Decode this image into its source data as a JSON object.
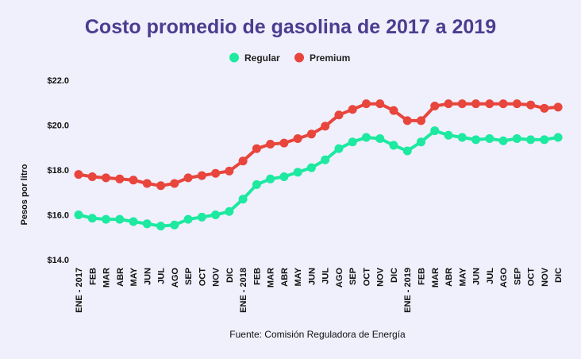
{
  "chart_data": {
    "type": "line",
    "title": "Costo promedio de gasolina de 2017 a 2019",
    "ylabel": "Pesos por litro",
    "xlabel": "",
    "source": "Fuente: Comisión Reguladora de Energía",
    "ylim": [
      14.0,
      22.0
    ],
    "yticks": [
      "$14.0",
      "$16.0",
      "$18.0",
      "$20.0",
      "$22.0"
    ],
    "ytick_values": [
      14,
      16,
      18,
      20,
      22
    ],
    "legend_position": "top-center",
    "grid": false,
    "categories": [
      "ENE - 2017",
      "FEB",
      "MAR",
      "ABR",
      "MAY",
      "JUN",
      "JUL",
      "AGO",
      "SEP",
      "OCT",
      "NOV",
      "DIC",
      "ENE - 2018",
      "FEB",
      "MAR",
      "ABR",
      "MAY",
      "JUN",
      "JUL",
      "AGO",
      "SEP",
      "OCT",
      "NOV",
      "DIC",
      "ENE - 2019",
      "FEB",
      "MAR",
      "ABR",
      "MAY",
      "JUN",
      "JUL",
      "AGO",
      "SEP",
      "OCT",
      "NOV",
      "DIC"
    ],
    "series": [
      {
        "name": "Regular",
        "color": "#1de9a0",
        "values": [
          16.0,
          15.85,
          15.8,
          15.8,
          15.7,
          15.6,
          15.5,
          15.55,
          15.8,
          15.9,
          16.0,
          16.15,
          16.7,
          17.35,
          17.6,
          17.7,
          17.9,
          18.1,
          18.45,
          18.95,
          19.25,
          19.45,
          19.4,
          19.1,
          18.85,
          19.25,
          19.75,
          19.55,
          19.45,
          19.35,
          19.4,
          19.3,
          19.4,
          19.35,
          19.35,
          19.45
        ]
      },
      {
        "name": "Premium",
        "color": "#e8453c",
        "values": [
          17.8,
          17.7,
          17.65,
          17.6,
          17.55,
          17.4,
          17.3,
          17.4,
          17.65,
          17.75,
          17.85,
          17.95,
          18.4,
          18.95,
          19.15,
          19.2,
          19.4,
          19.6,
          19.95,
          20.45,
          20.7,
          20.95,
          20.95,
          20.65,
          20.2,
          20.2,
          20.85,
          20.95,
          20.95,
          20.95,
          20.95,
          20.95,
          20.95,
          20.9,
          20.75,
          20.8
        ]
      }
    ]
  }
}
